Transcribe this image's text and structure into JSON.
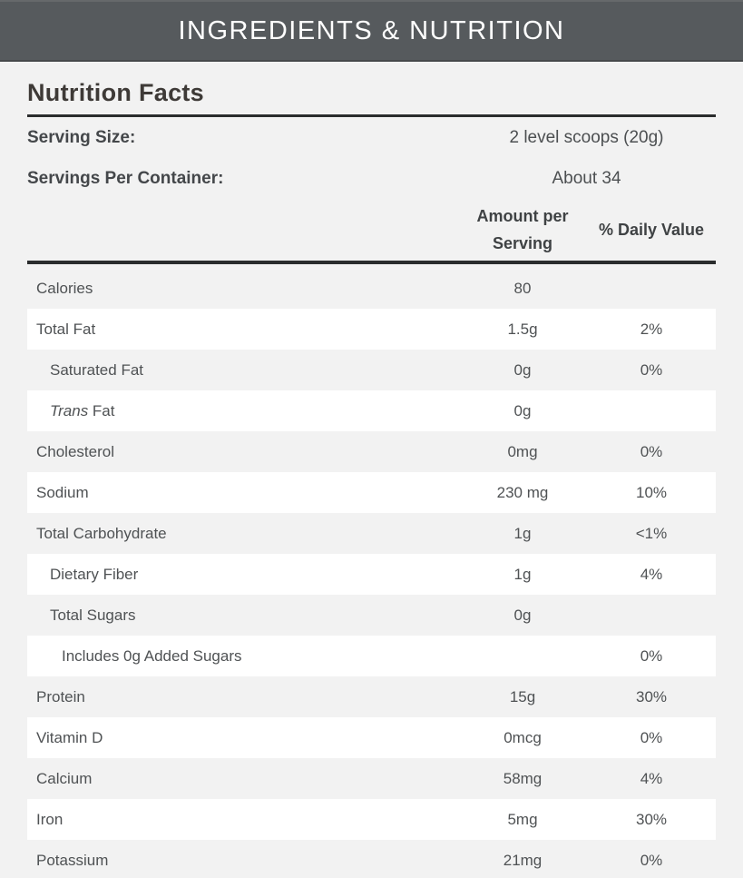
{
  "colors": {
    "banner_bg": "#565a5d",
    "page_bg": "#f2f2f2",
    "row_highlight": "#ffffff",
    "rule": "#2a2c2d",
    "banner_text": "#ffffff"
  },
  "banner": {
    "title": "INGREDIENTS & NUTRITION"
  },
  "panel": {
    "title": "Nutrition Facts",
    "serving_info": [
      {
        "label": "Serving Size:",
        "value": "2 level scoops (20g)"
      },
      {
        "label": "Servings Per Container:",
        "value": "About 34"
      }
    ],
    "columns": {
      "amount": "Amount per Serving",
      "daily": "% Daily Value"
    },
    "rows": [
      {
        "label": "Calories",
        "amount": "80",
        "daily": "",
        "indent": 0,
        "italic_words": 0
      },
      {
        "label": "Total Fat",
        "amount": "1.5g",
        "daily": "2%",
        "indent": 0,
        "italic_words": 0
      },
      {
        "label": "Saturated Fat",
        "amount": "0g",
        "daily": "0%",
        "indent": 1,
        "italic_words": 0
      },
      {
        "label": "Trans Fat",
        "amount": "0g",
        "daily": "",
        "indent": 1,
        "italic_words": 1
      },
      {
        "label": "Cholesterol",
        "amount": "0mg",
        "daily": "0%",
        "indent": 0,
        "italic_words": 0
      },
      {
        "label": "Sodium",
        "amount": "230 mg",
        "daily": "10%",
        "indent": 0,
        "italic_words": 0
      },
      {
        "label": "Total Carbohydrate",
        "amount": "1g",
        "daily": "<1%",
        "indent": 0,
        "italic_words": 0
      },
      {
        "label": "Dietary Fiber",
        "amount": "1g",
        "daily": "4%",
        "indent": 1,
        "italic_words": 0
      },
      {
        "label": "Total Sugars",
        "amount": "0g",
        "daily": "",
        "indent": 1,
        "italic_words": 0
      },
      {
        "label": "Includes 0g Added Sugars",
        "amount": "",
        "daily": "0%",
        "indent": 2,
        "italic_words": 0
      },
      {
        "label": "Protein",
        "amount": "15g",
        "daily": "30%",
        "indent": 0,
        "italic_words": 0
      },
      {
        "label": "Vitamin D",
        "amount": "0mcg",
        "daily": "0%",
        "indent": 0,
        "italic_words": 0
      },
      {
        "label": "Calcium",
        "amount": "58mg",
        "daily": "4%",
        "indent": 0,
        "italic_words": 0
      },
      {
        "label": "Iron",
        "amount": "5mg",
        "daily": "30%",
        "indent": 0,
        "italic_words": 0
      },
      {
        "label": "Potassium",
        "amount": "21mg",
        "daily": "0%",
        "indent": 0,
        "italic_words": 0
      }
    ]
  }
}
